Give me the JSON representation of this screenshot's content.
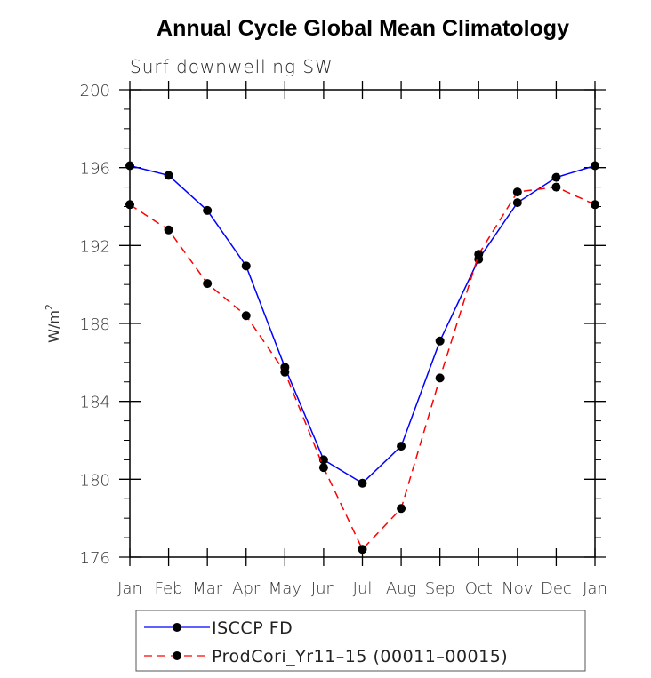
{
  "chart_data": {
    "type": "line",
    "title": "Annual Cycle Global Mean Climatology",
    "subtitle": "Surf downwelling SW",
    "xlabel": "",
    "ylabel": "W/m",
    "ylabel_superscript": "2",
    "categories": [
      "Jan",
      "Feb",
      "Mar",
      "Apr",
      "May",
      "Jun",
      "Jul",
      "Aug",
      "Sep",
      "Oct",
      "Nov",
      "Dec",
      "Jan"
    ],
    "ylim": [
      176,
      200
    ],
    "yticks": [
      176,
      180,
      184,
      188,
      192,
      196,
      200
    ],
    "yticks_labels": [
      "176",
      "180",
      "184",
      "188",
      "192",
      "196",
      "200"
    ],
    "grid": false,
    "legend_position": "bottom",
    "series": [
      {
        "name": "ISCCP FD",
        "color": "#0000ff",
        "style": "solid",
        "marker": "filled-circle",
        "values": [
          196.1,
          195.6,
          193.8,
          190.95,
          185.75,
          181.0,
          179.8,
          181.7,
          187.1,
          191.3,
          194.2,
          195.5,
          196.1
        ]
      },
      {
        "name": "ProdCori_Yr11–15 (00011–00015)",
        "color": "#ff0000",
        "style": "dashed",
        "marker": "filled-circle",
        "values": [
          194.1,
          192.8,
          190.05,
          188.4,
          185.5,
          180.6,
          176.4,
          178.5,
          185.2,
          191.55,
          194.75,
          195.0,
          194.1
        ]
      }
    ]
  }
}
